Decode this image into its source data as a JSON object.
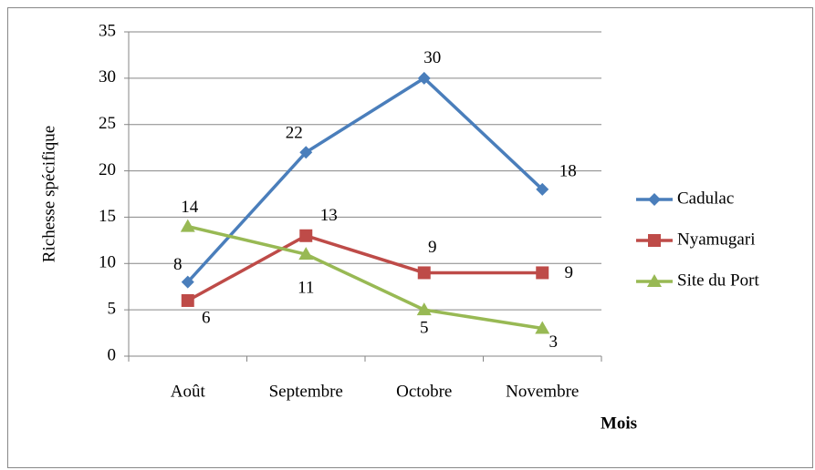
{
  "chart_data": {
    "type": "line",
    "categories": [
      "Août",
      "Septembre",
      "Octobre",
      "Novembre"
    ],
    "series": [
      {
        "name": "Cadulac",
        "color": "#4a7ebb",
        "marker": "diamond",
        "values": [
          8,
          22,
          30,
          18
        ]
      },
      {
        "name": "Nyamugari",
        "color": "#be4b48",
        "marker": "square",
        "values": [
          6,
          13,
          9,
          9
        ]
      },
      {
        "name": "Site du Port",
        "color": "#98b954",
        "marker": "triangle",
        "values": [
          14,
          11,
          5,
          3
        ]
      }
    ],
    "ylim": [
      0,
      35
    ],
    "yticks": [
      0,
      5,
      10,
      15,
      20,
      25,
      30,
      35
    ],
    "y_label": "Richesse spécifique",
    "x_label": "Mois",
    "grid": true,
    "legend": "right"
  }
}
